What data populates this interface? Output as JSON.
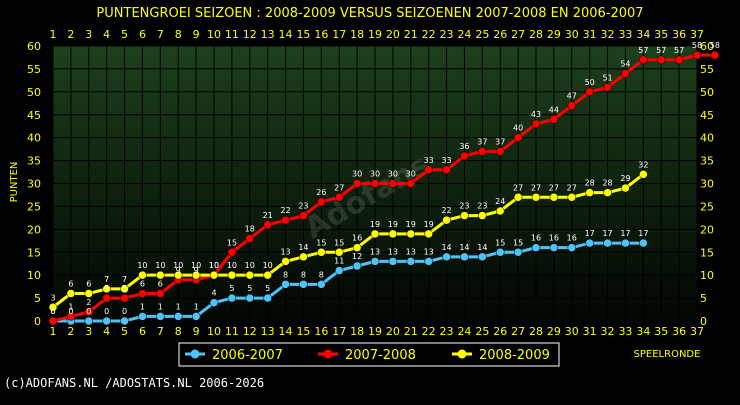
{
  "title": "PUNTENGROEI  SEIZOEN : 2008-2009 VERSUS SEIZOENEN 2007-2008 EN 2006-2007",
  "copyright": "(c)ADOFANS.NL /ADOSTATS.NL 2006-2026",
  "watermark": "Adofans",
  "colors": {
    "background": "#000000",
    "plot_top": "#1c401c",
    "plot_bottom": "#020602",
    "axis_text": "#ffff00",
    "grid": "#000000"
  },
  "chart_data": {
    "type": "line",
    "title": "PUNTENGROEI  SEIZOEN : 2008-2009 VERSUS SEIZOENEN 2007-2008 EN 2006-2007",
    "xlabel": "SPEELRONDE",
    "ylabel": "PUNTEN",
    "xlim": [
      1,
      37
    ],
    "ylim": [
      0,
      60
    ],
    "yticks": [
      0,
      5,
      10,
      15,
      20,
      25,
      30,
      35,
      40,
      45,
      50,
      55,
      60
    ],
    "xticks": [
      1,
      2,
      3,
      4,
      5,
      6,
      7,
      8,
      9,
      10,
      11,
      12,
      13,
      14,
      15,
      16,
      17,
      18,
      19,
      20,
      21,
      22,
      23,
      24,
      25,
      26,
      27,
      28,
      29,
      30,
      31,
      32,
      33,
      34,
      35,
      36,
      37
    ],
    "grid": true,
    "legend_position": "bottom",
    "series": [
      {
        "name": "2006-2007",
        "color": "#4fc3f7",
        "x": [
          1,
          2,
          3,
          4,
          5,
          6,
          7,
          8,
          9,
          10,
          11,
          12,
          13,
          14,
          15,
          16,
          17,
          18,
          19,
          20,
          21,
          22,
          23,
          24,
          25,
          26,
          27,
          28,
          29,
          30,
          31,
          32,
          33,
          34
        ],
        "values": [
          0,
          0,
          0,
          0,
          0,
          1,
          1,
          1,
          1,
          4,
          5,
          5,
          5,
          8,
          8,
          8,
          11,
          12,
          13,
          13,
          13,
          13,
          14,
          14,
          14,
          15,
          15,
          16,
          16,
          16,
          17,
          17,
          17,
          17
        ]
      },
      {
        "name": "2007-2008",
        "color": "#ff0000",
        "x": [
          1,
          2,
          3,
          4,
          5,
          6,
          7,
          8,
          9,
          10,
          11,
          12,
          13,
          14,
          15,
          16,
          17,
          18,
          19,
          20,
          21,
          22,
          23,
          24,
          25,
          26,
          27,
          28,
          29,
          30,
          31,
          32,
          33,
          34,
          35,
          36,
          37,
          38
        ],
        "values": [
          0,
          1,
          2,
          5,
          5,
          6,
          6,
          9,
          9,
          10,
          15,
          18,
          21,
          22,
          23,
          26,
          27,
          30,
          30,
          30,
          30,
          33,
          33,
          36,
          37,
          37,
          40,
          43,
          44,
          47,
          50,
          51,
          54,
          57,
          57,
          57,
          58,
          58
        ]
      },
      {
        "name": "2008-2009",
        "color": "#ffff00",
        "x": [
          1,
          2,
          3,
          4,
          5,
          6,
          7,
          8,
          9,
          10,
          11,
          12,
          13,
          14,
          15,
          16,
          17,
          18,
          19,
          20,
          21,
          22,
          23,
          24,
          25,
          26,
          27,
          28,
          29,
          30,
          31,
          32,
          33,
          34
        ],
        "values": [
          3,
          6,
          6,
          7,
          7,
          10,
          10,
          10,
          10,
          10,
          10,
          10,
          10,
          13,
          14,
          15,
          15,
          16,
          19,
          19,
          19,
          19,
          22,
          23,
          23,
          24,
          27,
          27,
          27,
          27,
          28,
          28,
          29,
          32
        ]
      }
    ]
  }
}
